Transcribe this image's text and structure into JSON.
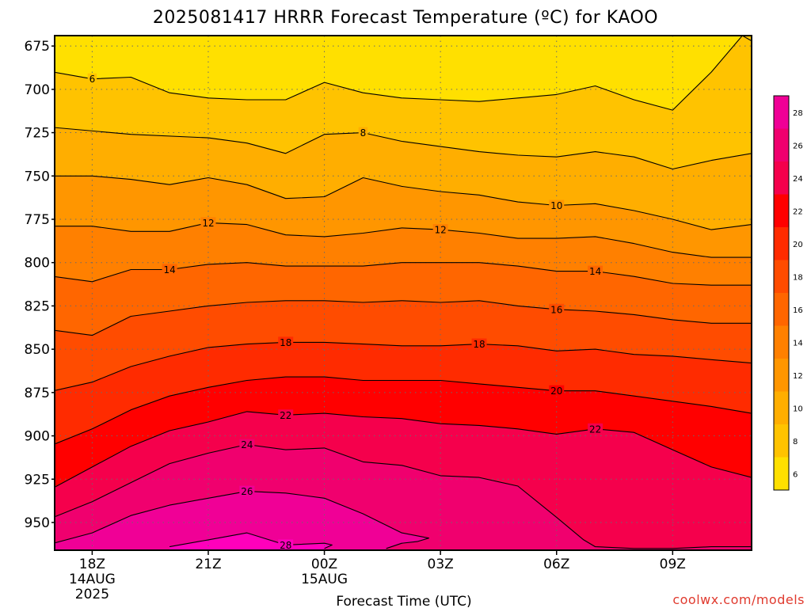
{
  "chart_data": {
    "type": "contour",
    "title": "2025081417 HRRR Forecast Temperature (ºC) for KAOO",
    "xlabel": "Forecast Time (UTC)",
    "ylabel": "",
    "credit": "coolwx.com/models",
    "x_ticks": [
      {
        "hour": 1,
        "label": "18Z",
        "sub1": "14AUG",
        "sub2": "2025"
      },
      {
        "hour": 4,
        "label": "21Z",
        "sub1": "",
        "sub2": ""
      },
      {
        "hour": 7,
        "label": "00Z",
        "sub1": "15AUG",
        "sub2": ""
      },
      {
        "hour": 10,
        "label": "03Z",
        "sub1": "",
        "sub2": ""
      },
      {
        "hour": 13,
        "label": "06Z",
        "sub1": "",
        "sub2": ""
      },
      {
        "hour": 16,
        "label": "09Z",
        "sub1": "",
        "sub2": ""
      }
    ],
    "xlim": [
      0.03,
      18.04
    ],
    "ylim": [
      966,
      669
    ],
    "y_ticks": [
      675,
      700,
      725,
      750,
      775,
      800,
      825,
      850,
      875,
      900,
      925,
      950
    ],
    "y_scale": "linear (pressure, hPa, inverted)",
    "grid": true,
    "colorbar": {
      "ticks": [
        6,
        8,
        10,
        12,
        14,
        16,
        18,
        20,
        22,
        24,
        26,
        28
      ],
      "levels": [
        5,
        7,
        9,
        11,
        13,
        15,
        17,
        19,
        21,
        23,
        25,
        27,
        29
      ],
      "colors": [
        "#ffe000",
        "#ffc300",
        "#ffae00",
        "#ff9600",
        "#ff8000",
        "#ff6600",
        "#ff4c00",
        "#ff2b00",
        "#ff0000",
        "#f5004c",
        "#f0006e",
        "#f00096",
        "#ff00bb"
      ]
    },
    "ground_color": "#a0522d",
    "ground_pressure": 966,
    "contours": [
      {
        "level": 6,
        "points": [
          [
            0,
            690
          ],
          [
            1,
            694
          ],
          [
            2,
            693
          ],
          [
            3,
            702
          ],
          [
            4,
            705
          ],
          [
            5,
            706
          ],
          [
            6,
            706
          ],
          [
            7,
            696
          ],
          [
            8,
            702
          ],
          [
            9,
            705
          ],
          [
            10,
            706
          ],
          [
            11,
            707
          ],
          [
            12,
            705
          ],
          [
            13,
            703
          ],
          [
            14,
            698
          ],
          [
            15,
            706
          ],
          [
            16,
            712
          ],
          [
            17,
            690
          ],
          [
            17.8,
            669
          ]
        ],
        "labels": [
          [
            1,
            694
          ]
        ]
      },
      {
        "level": 6,
        "points": [
          [
            17.8,
            669
          ],
          [
            18.04,
            672
          ]
        ],
        "labels": []
      },
      {
        "level": 8,
        "points": [
          [
            0,
            722
          ],
          [
            2,
            726
          ],
          [
            4,
            728
          ],
          [
            5,
            731
          ],
          [
            6,
            737
          ],
          [
            7,
            726
          ],
          [
            8,
            725
          ],
          [
            9,
            730
          ],
          [
            10,
            733
          ],
          [
            11,
            736
          ],
          [
            12,
            738
          ],
          [
            13,
            739
          ],
          [
            14,
            736
          ],
          [
            15,
            739
          ],
          [
            16,
            746
          ],
          [
            17,
            741
          ],
          [
            18.04,
            737
          ]
        ],
        "labels": [
          [
            8,
            725
          ]
        ]
      },
      {
        "level": 10,
        "points": [
          [
            0,
            750
          ],
          [
            1,
            750
          ],
          [
            2,
            752
          ],
          [
            3,
            755
          ],
          [
            4,
            751
          ],
          [
            5,
            755
          ],
          [
            6,
            763
          ],
          [
            7,
            762
          ],
          [
            8,
            751
          ],
          [
            9,
            756
          ],
          [
            10,
            759
          ],
          [
            11,
            761
          ],
          [
            12,
            765
          ],
          [
            13,
            767
          ],
          [
            14,
            766
          ],
          [
            15,
            770
          ],
          [
            16,
            775
          ],
          [
            17,
            781
          ],
          [
            18.04,
            778
          ]
        ],
        "labels": [
          [
            13,
            767
          ]
        ]
      },
      {
        "level": 12,
        "points": [
          [
            0,
            779
          ],
          [
            1,
            779
          ],
          [
            2,
            782
          ],
          [
            3,
            782
          ],
          [
            4,
            777
          ],
          [
            5,
            778
          ],
          [
            6,
            784
          ],
          [
            7,
            785
          ],
          [
            8,
            783
          ],
          [
            9,
            780
          ],
          [
            10,
            781
          ],
          [
            11,
            783
          ],
          [
            12,
            786
          ],
          [
            13,
            786
          ],
          [
            14,
            785
          ],
          [
            15,
            789
          ],
          [
            16,
            794
          ],
          [
            17,
            797
          ],
          [
            18.04,
            797
          ]
        ],
        "labels": [
          [
            4,
            777
          ],
          [
            10,
            781
          ]
        ]
      },
      {
        "level": 14,
        "points": [
          [
            0,
            808
          ],
          [
            1,
            811
          ],
          [
            2,
            804
          ],
          [
            3,
            804
          ],
          [
            4,
            801
          ],
          [
            5,
            800
          ],
          [
            6,
            802
          ],
          [
            7,
            802
          ],
          [
            8,
            802
          ],
          [
            9,
            800
          ],
          [
            10,
            800
          ],
          [
            11,
            800
          ],
          [
            12,
            802
          ],
          [
            13,
            805
          ],
          [
            14,
            805
          ],
          [
            15,
            808
          ],
          [
            16,
            812
          ],
          [
            17,
            813
          ],
          [
            18.04,
            813
          ]
        ],
        "labels": [
          [
            3,
            804
          ],
          [
            14,
            805
          ]
        ]
      },
      {
        "level": 16,
        "points": [
          [
            0,
            839
          ],
          [
            1,
            842
          ],
          [
            2,
            831
          ],
          [
            3,
            828
          ],
          [
            4,
            825
          ],
          [
            5,
            823
          ],
          [
            6,
            822
          ],
          [
            7,
            822
          ],
          [
            8,
            823
          ],
          [
            9,
            822
          ],
          [
            10,
            823
          ],
          [
            11,
            822
          ],
          [
            12,
            825
          ],
          [
            13,
            827
          ],
          [
            14,
            828
          ],
          [
            15,
            830
          ],
          [
            16,
            833
          ],
          [
            17,
            835
          ],
          [
            18.04,
            835
          ]
        ],
        "labels": [
          [
            13,
            827
          ]
        ]
      },
      {
        "level": 18,
        "points": [
          [
            0,
            874
          ],
          [
            1,
            869
          ],
          [
            2,
            860
          ],
          [
            3,
            854
          ],
          [
            4,
            849
          ],
          [
            5,
            847
          ],
          [
            6,
            846
          ],
          [
            7,
            846
          ],
          [
            8,
            847
          ],
          [
            9,
            848
          ],
          [
            10,
            848
          ],
          [
            11,
            847
          ],
          [
            12,
            848
          ],
          [
            13,
            851
          ],
          [
            14,
            850
          ],
          [
            15,
            853
          ],
          [
            16,
            854
          ],
          [
            17,
            856
          ],
          [
            18.04,
            858
          ]
        ],
        "labels": [
          [
            6,
            846
          ],
          [
            11,
            847
          ]
        ]
      },
      {
        "level": 20,
        "points": [
          [
            0,
            905
          ],
          [
            1,
            896
          ],
          [
            2,
            885
          ],
          [
            3,
            877
          ],
          [
            4,
            872
          ],
          [
            5,
            868
          ],
          [
            6,
            866
          ],
          [
            7,
            866
          ],
          [
            8,
            868
          ],
          [
            9,
            868
          ],
          [
            10,
            868
          ],
          [
            11,
            870
          ],
          [
            12,
            872
          ],
          [
            13,
            874
          ],
          [
            14,
            874
          ],
          [
            15,
            877
          ],
          [
            16,
            880
          ],
          [
            17,
            883
          ],
          [
            18.04,
            887
          ]
        ],
        "labels": [
          [
            13,
            874
          ]
        ]
      },
      {
        "level": 22,
        "points": [
          [
            0,
            930
          ],
          [
            1,
            918
          ],
          [
            2,
            906
          ],
          [
            3,
            897
          ],
          [
            4,
            892
          ],
          [
            5,
            886
          ],
          [
            6,
            888
          ],
          [
            7,
            887
          ],
          [
            8,
            889
          ],
          [
            9,
            890
          ],
          [
            10,
            893
          ],
          [
            11,
            894
          ],
          [
            12,
            896
          ],
          [
            13,
            899
          ],
          [
            14,
            896
          ],
          [
            15,
            898
          ],
          [
            16,
            908
          ],
          [
            17,
            918
          ],
          [
            18.04,
            924
          ]
        ],
        "labels": [
          [
            6,
            888
          ],
          [
            14,
            896
          ]
        ]
      },
      {
        "level": 24,
        "points": [
          [
            0,
            947
          ],
          [
            1,
            938
          ],
          [
            2,
            927
          ],
          [
            3,
            916
          ],
          [
            4,
            910
          ],
          [
            5,
            905
          ],
          [
            6,
            908
          ],
          [
            7,
            907
          ],
          [
            8,
            915
          ],
          [
            9,
            917
          ],
          [
            10,
            923
          ],
          [
            11,
            924
          ],
          [
            12,
            929
          ],
          [
            13,
            947
          ],
          [
            13.7,
            960
          ],
          [
            14,
            964
          ],
          [
            15,
            965
          ],
          [
            16,
            965
          ],
          [
            17,
            964
          ],
          [
            18.04,
            964
          ]
        ],
        "labels": [
          [
            5,
            905
          ]
        ]
      },
      {
        "level": 26,
        "points": [
          [
            0,
            962
          ],
          [
            1,
            956
          ],
          [
            2,
            946
          ],
          [
            3,
            940
          ],
          [
            4,
            936
          ],
          [
            5,
            932
          ],
          [
            6,
            933
          ],
          [
            7,
            936
          ],
          [
            8,
            945
          ],
          [
            9,
            956
          ],
          [
            9.7,
            959
          ],
          [
            9.4,
            961
          ],
          [
            9,
            962
          ],
          [
            8.6,
            965
          ]
        ],
        "labels": [
          [
            5,
            932
          ]
        ]
      },
      {
        "level": 28,
        "points": [
          [
            3,
            964
          ],
          [
            4,
            960
          ],
          [
            5,
            956
          ],
          [
            6,
            963
          ],
          [
            7,
            962
          ],
          [
            7.2,
            963
          ],
          [
            7,
            965
          ]
        ],
        "labels": [
          [
            6,
            963
          ]
        ]
      }
    ]
  }
}
